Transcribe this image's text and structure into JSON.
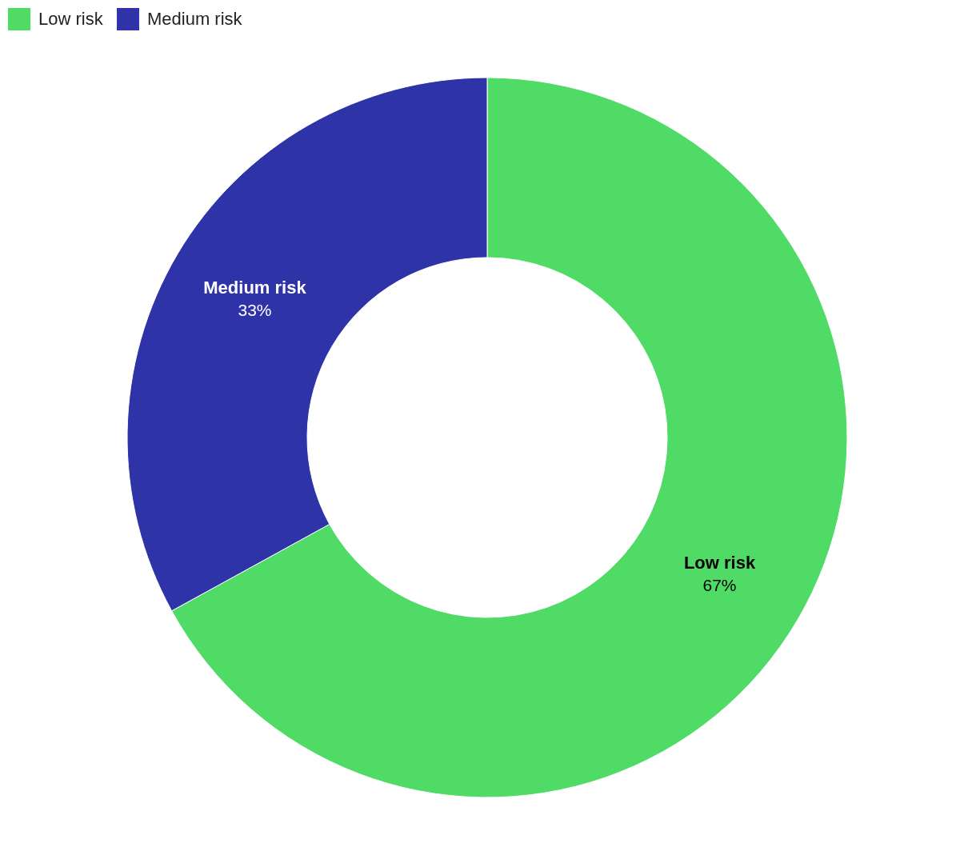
{
  "chart_data": {
    "type": "donut",
    "categories": [
      "Low risk",
      "Medium risk"
    ],
    "values": [
      67,
      33
    ],
    "colors": [
      "#4fdb66",
      "#2e33a8"
    ],
    "value_labels": [
      "67%",
      "33%"
    ],
    "legend": "top left"
  }
}
